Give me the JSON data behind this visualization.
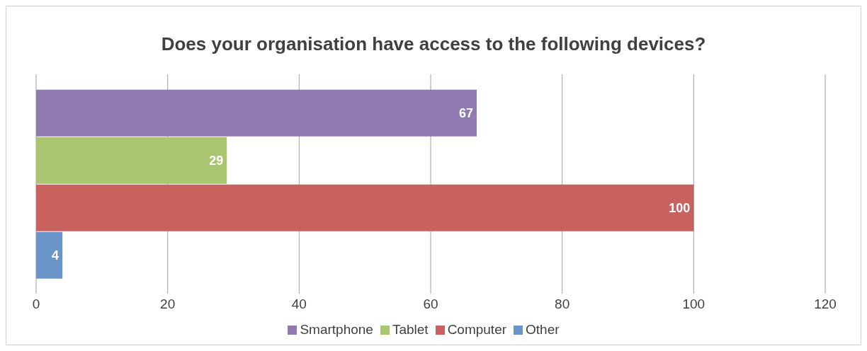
{
  "chart_data": {
    "type": "bar",
    "title": "Does your organisation have access to the following devices?",
    "orientation": "horizontal",
    "categories": [
      null
    ],
    "series": [
      {
        "name": "Smartphone",
        "color": "#9179b1",
        "values": [
          67
        ]
      },
      {
        "name": "Tablet",
        "color": "#a9c56f",
        "values": [
          29
        ]
      },
      {
        "name": "Computer",
        "color": "#c9625f",
        "values": [
          100
        ]
      },
      {
        "name": "Other",
        "color": "#6a95c9",
        "values": [
          4
        ]
      }
    ],
    "xlim": [
      0,
      120
    ],
    "xticks": [
      0,
      20,
      40,
      60,
      80,
      100,
      120
    ],
    "grid": "x",
    "legend": "bottom",
    "data_labels": true
  }
}
